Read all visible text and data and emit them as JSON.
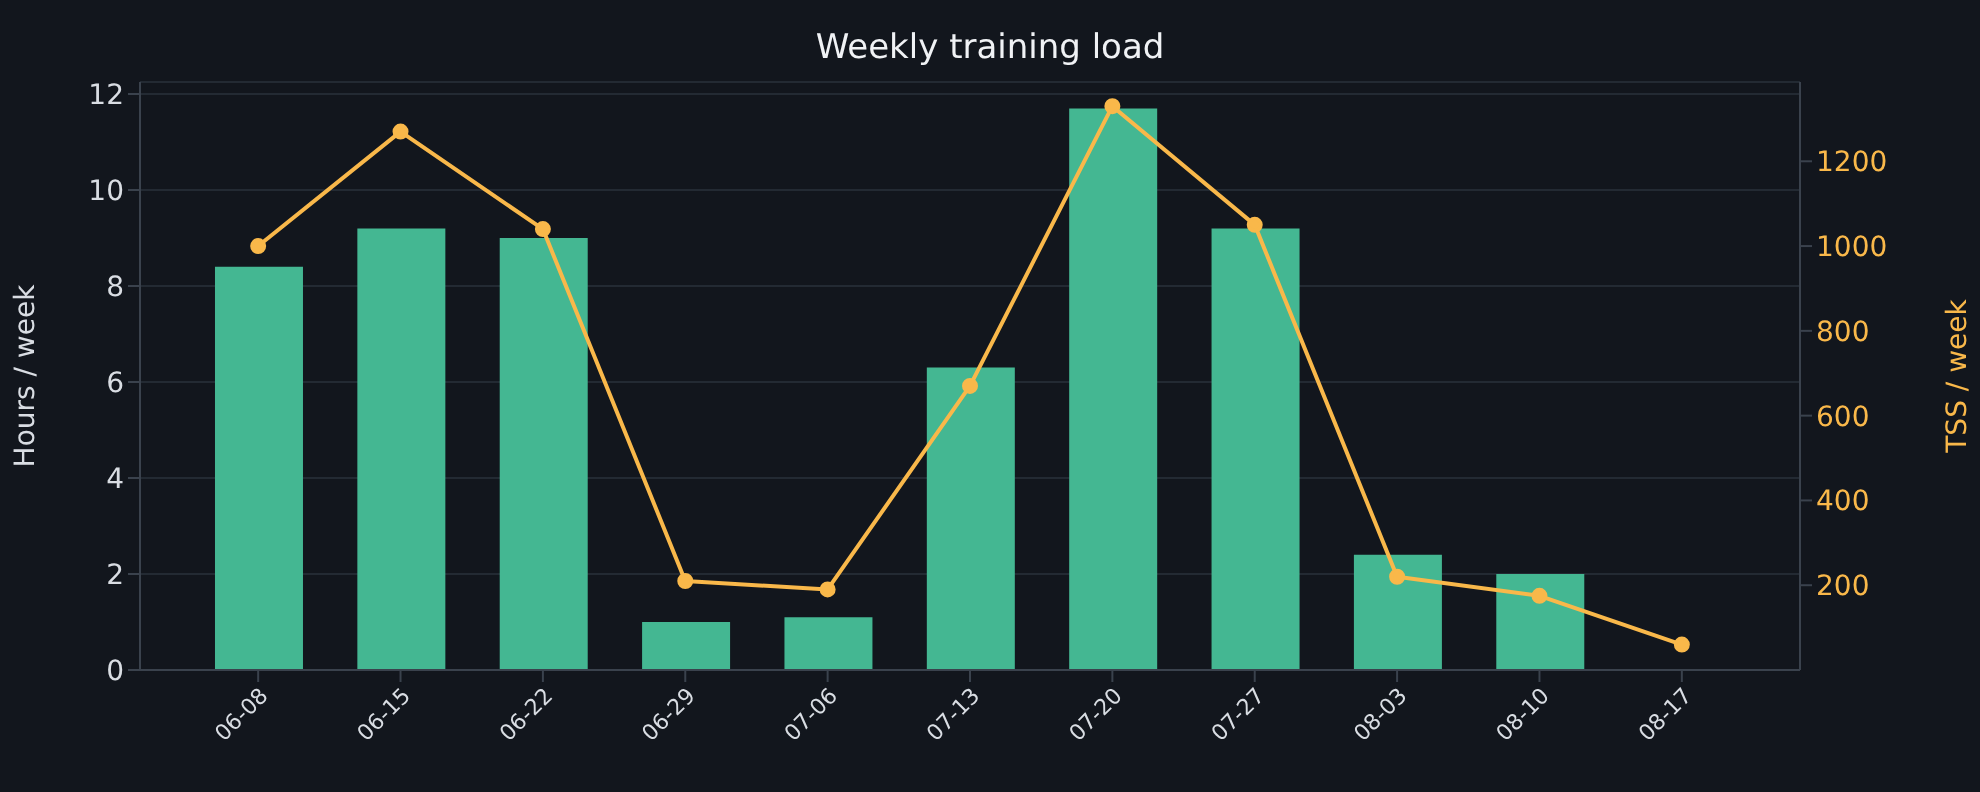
{
  "chart_data": {
    "type": "bar",
    "title": "Weekly training load",
    "ylabel": "Hours / week",
    "y2label": "TSS / week",
    "categories": [
      "06-08",
      "06-15",
      "06-22",
      "06-29",
      "07-06",
      "07-13",
      "07-20",
      "07-27",
      "08-03",
      "08-10",
      "08-17"
    ],
    "series": [
      {
        "color": "#44b792",
        "values": [
          8.4,
          9.2,
          9.0,
          1.0,
          1.1,
          6.3,
          11.7,
          9.2,
          2.4,
          2.0,
          null
        ]
      },
      {
        "type": "line",
        "axis": "y2",
        "color": "#f9b84a",
        "values": [
          1000,
          1270,
          1040,
          210,
          190,
          670,
          1330,
          1050,
          220,
          175,
          60
        ]
      }
    ],
    "ylim": [
      0,
      12.25
    ],
    "yticks": [
      0,
      2,
      4,
      6,
      8,
      10,
      12
    ],
    "y2lim": [
      0,
      1387
    ],
    "y2ticks": [
      200,
      400,
      600,
      800,
      1000,
      1200
    ],
    "grid": "y",
    "marker": "circle",
    "line_style": "solid",
    "legend": false
  }
}
